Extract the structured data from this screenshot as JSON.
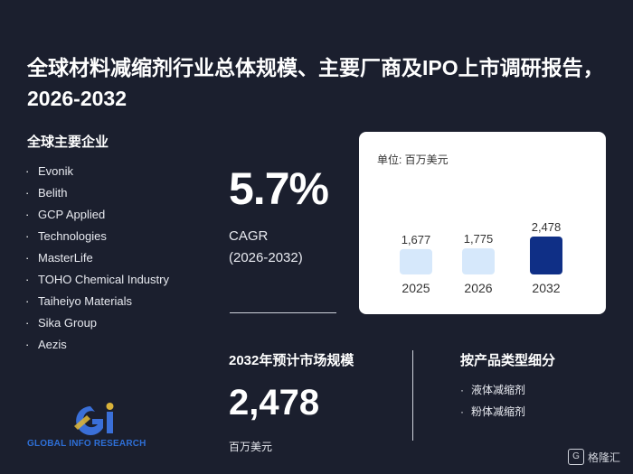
{
  "title": "全球材料减缩剂行业总体规模、主要厂商及IPO上市调研报告，2026-2032",
  "companies_heading": "全球主要企业",
  "companies": [
    "Evonik",
    "Belith",
    "GCP Applied",
    "Technologies",
    "MasterLife",
    "TOHO Chemical Industry",
    "Taiheiyo Materials",
    "Sika Group",
    "Aezis"
  ],
  "cagr": {
    "value": "5.7%",
    "label": "CAGR",
    "period": "(2026-2032)"
  },
  "market": {
    "heading": "2032年预计市场规模",
    "value": "2,478",
    "unit": "百万美元"
  },
  "segments": {
    "heading": "按产品类型细分",
    "items": [
      "液体减缩剂",
      "粉体减缩剂"
    ]
  },
  "logo": {
    "text": "GLOBAL INFO RESEARCH"
  },
  "watermark": {
    "text": "格隆汇",
    "icon": "g-logo-icon"
  },
  "colors": {
    "background": "#1b1f2e",
    "bar_light": "#d6e8fb",
    "bar_dark": "#0f2f86"
  },
  "chart_data": {
    "type": "bar",
    "unit_label": "单位: 百万美元",
    "categories": [
      "2025",
      "2026",
      "2032"
    ],
    "values": [
      1677,
      1775,
      2478
    ],
    "value_labels": [
      "1,677",
      "1,775",
      "2,478"
    ],
    "highlight_index": 2,
    "ylim": [
      0,
      2800
    ]
  }
}
